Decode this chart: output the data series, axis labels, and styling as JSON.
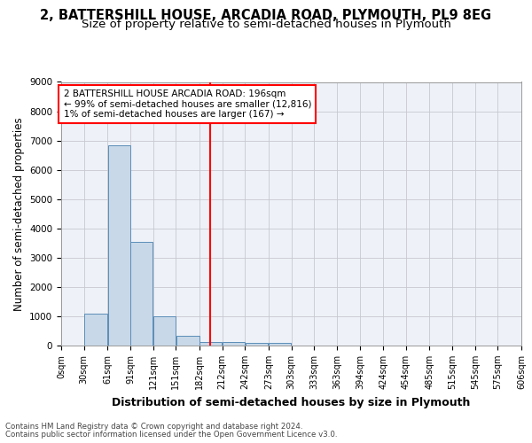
{
  "title": "2, BATTERSHILL HOUSE, ARCADIA ROAD, PLYMOUTH, PL9 8EG",
  "subtitle": "Size of property relative to semi-detached houses in Plymouth",
  "xlabel": "Distribution of semi-detached houses by size in Plymouth",
  "ylabel": "Number of semi-detached properties",
  "footer1": "Contains HM Land Registry data © Crown copyright and database right 2024.",
  "footer2": "Contains public sector information licensed under the Open Government Licence v3.0.",
  "annotation_line1": "2 BATTERSHILL HOUSE ARCADIA ROAD: 196sqm",
  "annotation_line2": "← 99% of semi-detached houses are smaller (12,816)",
  "annotation_line3": "1% of semi-detached houses are larger (167) →",
  "bar_left_edges": [
    0,
    30,
    61,
    91,
    121,
    151,
    182,
    212,
    242,
    273,
    303,
    333,
    363,
    394,
    424,
    454,
    485,
    515,
    545,
    575
  ],
  "bar_widths": [
    30,
    31,
    30,
    30,
    30,
    31,
    30,
    30,
    31,
    30,
    30,
    30,
    31,
    30,
    30,
    31,
    30,
    30,
    30,
    31
  ],
  "bar_heights": [
    0,
    1100,
    6850,
    3550,
    1000,
    320,
    130,
    120,
    90,
    80,
    0,
    0,
    0,
    0,
    0,
    0,
    0,
    0,
    0,
    0
  ],
  "bar_color": "#c8d8e8",
  "bar_edgecolor": "#5b8db8",
  "tick_labels": [
    "0sqm",
    "30sqm",
    "61sqm",
    "91sqm",
    "121sqm",
    "151sqm",
    "182sqm",
    "212sqm",
    "242sqm",
    "273sqm",
    "303sqm",
    "333sqm",
    "363sqm",
    "394sqm",
    "424sqm",
    "454sqm",
    "485sqm",
    "515sqm",
    "545sqm",
    "575sqm",
    "606sqm"
  ],
  "red_line_x": 196,
  "ylim": [
    0,
    9000
  ],
  "yticks": [
    0,
    1000,
    2000,
    3000,
    4000,
    5000,
    6000,
    7000,
    8000,
    9000
  ],
  "bg_color": "#eef2f8",
  "grid_color": "#c8c8d0",
  "title_fontsize": 10.5,
  "subtitle_fontsize": 9.5,
  "axis_label_fontsize": 8.5,
  "tick_fontsize": 7,
  "ann_fontsize": 7.5
}
